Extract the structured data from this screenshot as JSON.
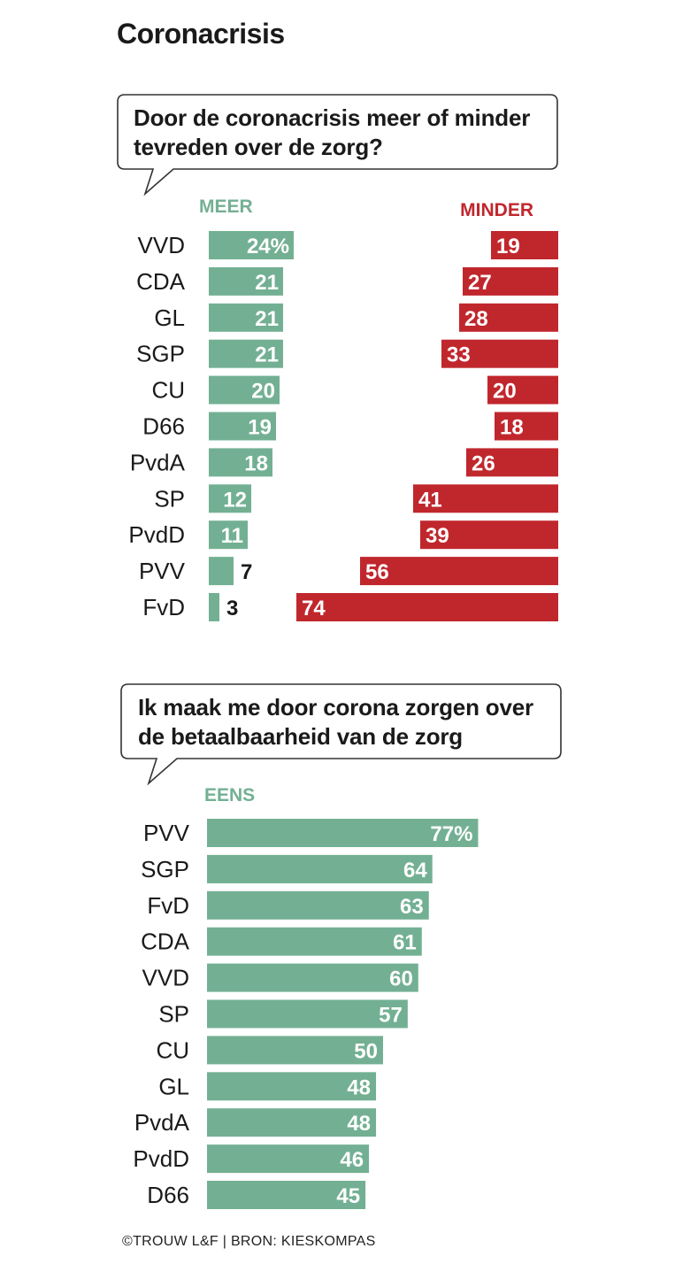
{
  "page_title": "Coronacrisis",
  "footer": "©TROUW L&F | BRON: KIESKOMPAS",
  "colors": {
    "green": "#73b093",
    "red": "#c0272d",
    "text": "#1a1a1a"
  },
  "chart_data": [
    {
      "type": "bar",
      "orientation": "horizontal",
      "layout": "diverging",
      "title": "Door de coronacrisis meer of minder tevreden over de zorg?",
      "categories": [
        "VVD",
        "CDA",
        "GL",
        "SGP",
        "CU",
        "D66",
        "PvdA",
        "SP",
        "PvdD",
        "PVV",
        "FvD"
      ],
      "series": [
        {
          "name": "MEER",
          "color": "#73b093",
          "values": [
            24,
            21,
            21,
            21,
            20,
            19,
            18,
            12,
            11,
            7,
            3
          ],
          "labels": [
            "24%",
            "21",
            "21",
            "21",
            "20",
            "19",
            "18",
            "12",
            "11",
            "7",
            "3"
          ]
        },
        {
          "name": "MINDER",
          "color": "#c0272d",
          "values": [
            19,
            27,
            28,
            33,
            20,
            18,
            26,
            41,
            39,
            56,
            74
          ],
          "labels": [
            "19",
            "27",
            "28",
            "33",
            "20",
            "18",
            "26",
            "41",
            "39",
            "56",
            "74"
          ]
        }
      ],
      "unit": "%"
    },
    {
      "type": "bar",
      "orientation": "horizontal",
      "title": "Ik maak me door corona zorgen over de betaalbaarheid van de zorg",
      "categories": [
        "PVV",
        "SGP",
        "FvD",
        "CDA",
        "VVD",
        "SP",
        "CU",
        "GL",
        "PvdA",
        "PvdD",
        "D66"
      ],
      "series": [
        {
          "name": "EENS",
          "color": "#73b093",
          "values": [
            77,
            64,
            63,
            61,
            60,
            57,
            50,
            48,
            48,
            46,
            45
          ],
          "labels": [
            "77%",
            "64",
            "63",
            "61",
            "60",
            "57",
            "50",
            "48",
            "48",
            "46",
            "45"
          ]
        }
      ],
      "unit": "%"
    }
  ]
}
